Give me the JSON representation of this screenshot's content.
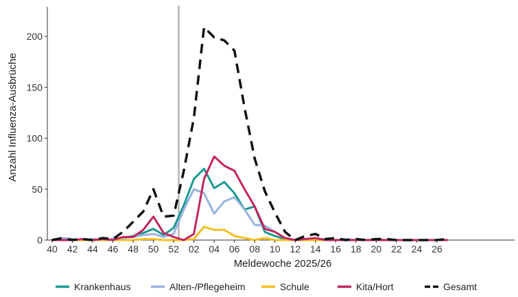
{
  "chart_data": {
    "type": "line",
    "xlabel": "Meldewoche 2025/26",
    "ylabel": "Anzahl Influenza-Ausbrüche",
    "ylim": [
      0,
      230
    ],
    "yticks": [
      0,
      50,
      100,
      150,
      200
    ],
    "x_tick_labels": [
      "40",
      "42",
      "44",
      "46",
      "48",
      "50",
      "52",
      "02",
      "04",
      "06",
      "08",
      "10",
      "12",
      "14",
      "16",
      "18",
      "20",
      "22",
      "24",
      "26"
    ],
    "x": [
      "40",
      "41",
      "42",
      "43",
      "44",
      "45",
      "46",
      "47",
      "48",
      "49",
      "50",
      "51",
      "52",
      "01",
      "02",
      "03",
      "04",
      "05",
      "06",
      "07",
      "08",
      "09",
      "10",
      "11",
      "12",
      "13",
      "14",
      "15",
      "16",
      "17",
      "18",
      "19",
      "20",
      "21",
      "22",
      "23",
      "24",
      "25",
      "26",
      "27"
    ],
    "vline_after_week": "52",
    "vline_color": "#b3b3b3",
    "grid": false,
    "legend_position": "bottom",
    "series": [
      {
        "name": "Krankenhaus",
        "color": "#1a9890",
        "dash": false,
        "values": [
          0,
          0,
          0,
          0,
          0,
          0,
          1,
          2,
          4,
          7,
          11,
          5,
          12,
          34,
          60,
          70,
          51,
          57,
          46,
          30,
          33,
          8,
          4,
          1,
          0,
          0,
          0,
          0,
          0,
          0,
          0,
          0,
          0,
          0,
          0,
          0,
          0,
          0,
          0,
          0
        ]
      },
      {
        "name": "Alten-/Pflegeheim",
        "color": "#98b3e0",
        "dash": false,
        "values": [
          0,
          2,
          1,
          0,
          1,
          0,
          1,
          2,
          3,
          5,
          6,
          3,
          6,
          30,
          50,
          46,
          26,
          38,
          42,
          30,
          15,
          14,
          8,
          2,
          0,
          1,
          1,
          1,
          0,
          1,
          0,
          0,
          1,
          0,
          0,
          0,
          0,
          0,
          0,
          0
        ]
      },
      {
        "name": "Schule",
        "color": "#f5bd1f",
        "dash": false,
        "values": [
          0,
          0,
          0,
          0,
          0,
          0,
          0,
          0,
          0,
          1,
          1,
          0,
          0,
          0,
          1,
          13,
          10,
          10,
          4,
          2,
          0,
          2,
          0,
          0,
          0,
          0,
          0,
          0,
          0,
          0,
          0,
          0,
          0,
          0,
          0,
          0,
          0,
          0,
          0,
          0
        ]
      },
      {
        "name": "Kita/Hort",
        "color": "#c3245f",
        "dash": false,
        "values": [
          0,
          0,
          0,
          1,
          0,
          1,
          0,
          3,
          3,
          10,
          23,
          7,
          3,
          0,
          6,
          60,
          82,
          73,
          68,
          50,
          33,
          11,
          8,
          2,
          0,
          1,
          2,
          0,
          0,
          0,
          0,
          0,
          0,
          0,
          0,
          0,
          0,
          0,
          0,
          0
        ]
      },
      {
        "name": "Gesamt",
        "color": "#111111",
        "dash": true,
        "values": [
          0,
          2,
          0,
          1,
          0,
          2,
          1,
          8,
          18,
          28,
          50,
          23,
          24,
          68,
          120,
          209,
          199,
          196,
          186,
          130,
          80,
          48,
          27,
          8,
          0,
          4,
          6,
          1,
          2,
          0,
          1,
          0,
          1,
          1,
          0,
          0,
          0,
          0,
          0,
          1
        ]
      }
    ]
  }
}
